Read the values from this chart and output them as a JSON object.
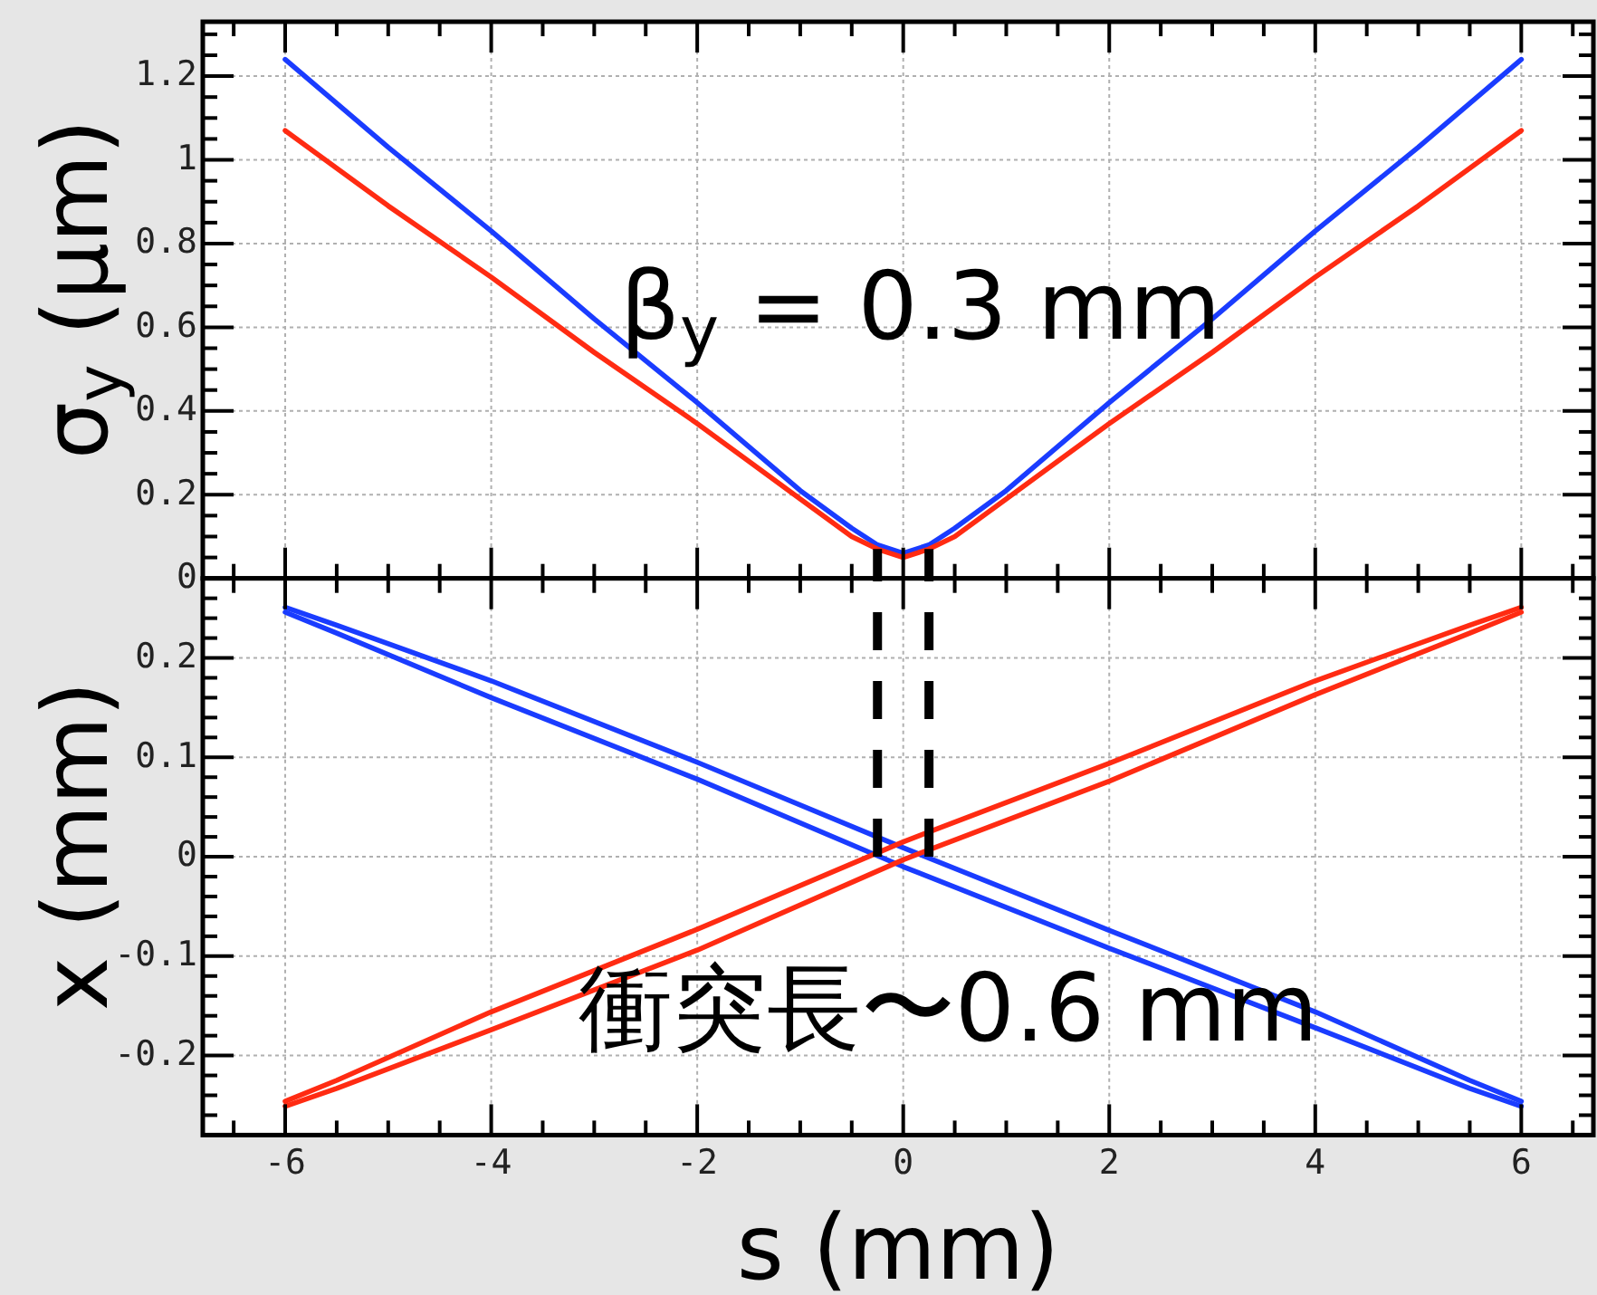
{
  "chart_data": [
    {
      "type": "line",
      "ylabel": "σ$_{y}$ (μm)",
      "annotations": [
        "β$_{y}$ = 0.3 mm"
      ],
      "x": [
        -6,
        -5,
        -4,
        -3,
        -2,
        -1,
        -0.5,
        -0.25,
        0,
        0.25,
        0.5,
        1,
        2,
        3,
        4,
        5,
        6
      ],
      "series": [
        {
          "color": "#1a3cff",
          "values": [
            1.24,
            1.03,
            0.83,
            0.62,
            0.42,
            0.21,
            0.12,
            0.08,
            0.06,
            0.08,
            0.12,
            0.21,
            0.42,
            0.62,
            0.83,
            1.03,
            1.24
          ]
        },
        {
          "color": "#ff2b12",
          "values": [
            1.07,
            0.89,
            0.72,
            0.54,
            0.37,
            0.19,
            0.1,
            0.07,
            0.05,
            0.07,
            0.1,
            0.19,
            0.37,
            0.54,
            0.72,
            0.89,
            1.07
          ]
        }
      ],
      "xlim": [
        -6.8,
        6.7
      ],
      "ylim": [
        0,
        1.33
      ],
      "xticks": [
        {
          "value": -6.5,
          "label": null
        },
        -6,
        {
          "value": -5.5,
          "label": null
        },
        {
          "value": -5,
          "label": null
        },
        {
          "value": -4.5,
          "label": null
        },
        -4,
        {
          "value": -3.5,
          "label": null
        },
        {
          "value": -3,
          "label": null
        },
        {
          "value": -2.5,
          "label": null
        },
        -2,
        {
          "value": -1.5,
          "label": null
        },
        {
          "value": -1,
          "label": null
        },
        {
          "value": -0.5,
          "label": null
        },
        0,
        {
          "value": 0.5,
          "label": null
        },
        {
          "value": 1,
          "label": null
        },
        {
          "value": 1.5,
          "label": null
        },
        2,
        {
          "value": 2.5,
          "label": null
        },
        {
          "value": 3,
          "label": null
        },
        {
          "value": 3.5,
          "label": null
        },
        4,
        {
          "value": 4.5,
          "label": null
        },
        {
          "value": 5,
          "label": null
        },
        {
          "value": 5.5,
          "label": null
        },
        6,
        {
          "value": 6.5,
          "label": null
        }
      ],
      "yticks": [
        0,
        {
          "value": 0.05,
          "label": null
        },
        {
          "value": 0.1,
          "label": null
        },
        {
          "value": 0.15,
          "label": null
        },
        0.2,
        {
          "value": 0.25,
          "label": null
        },
        {
          "value": 0.3,
          "label": null
        },
        {
          "value": 0.35,
          "label": null
        },
        0.4,
        {
          "value": 0.45,
          "label": null
        },
        {
          "value": 0.5,
          "label": null
        },
        {
          "value": 0.55,
          "label": null
        },
        0.6,
        {
          "value": 0.65,
          "label": null
        },
        {
          "value": 0.7,
          "label": null
        },
        {
          "value": 0.75,
          "label": null
        },
        0.8,
        {
          "value": 0.85,
          "label": null
        },
        {
          "value": 0.9,
          "label": null
        },
        {
          "value": 0.95,
          "label": null
        },
        1,
        {
          "value": 1.05,
          "label": null
        },
        {
          "value": 1.1,
          "label": null
        },
        {
          "value": 1.15,
          "label": null
        },
        1.2,
        {
          "value": 1.25,
          "label": null
        },
        {
          "value": 1.3,
          "label": null
        }
      ],
      "grid": true,
      "tick_labels": "y"
    },
    {
      "type": "line",
      "xlabel": "s (mm)",
      "ylabel": "x (mm)",
      "annotations": [
        "衝突長〜0.6 mm"
      ],
      "x": [
        -6,
        -5.5,
        -4,
        -2,
        0,
        2,
        4,
        5.5,
        6
      ],
      "series": [
        {
          "color": "#1a3cff",
          "values": [
            0.251,
            0.233,
            0.177,
            0.095,
            0.009,
            -0.074,
            -0.156,
            -0.225,
            -0.246
          ]
        },
        {
          "color": "#1a3cff",
          "values": [
            0.246,
            0.225,
            0.16,
            0.078,
            -0.01,
            -0.092,
            -0.172,
            -0.233,
            -0.251
          ]
        },
        {
          "color": "#ff2b12",
          "values": [
            -0.246,
            -0.225,
            -0.156,
            -0.073,
            0.015,
            0.094,
            0.177,
            0.233,
            0.251
          ]
        },
        {
          "color": "#ff2b12",
          "values": [
            -0.251,
            -0.233,
            -0.174,
            -0.094,
            -0.003,
            0.076,
            0.163,
            0.225,
            0.246
          ]
        }
      ],
      "xlim": [
        -6.8,
        6.7
      ],
      "ylim": [
        -0.28,
        0.28
      ],
      "xticks": [
        {
          "value": -6.5,
          "label": null
        },
        -6,
        {
          "value": -5.5,
          "label": null
        },
        {
          "value": -5,
          "label": null
        },
        {
          "value": -4.5,
          "label": null
        },
        -4,
        {
          "value": -3.5,
          "label": null
        },
        {
          "value": -3,
          "label": null
        },
        {
          "value": -2.5,
          "label": null
        },
        -2,
        {
          "value": -1.5,
          "label": null
        },
        {
          "value": -1,
          "label": null
        },
        {
          "value": -0.5,
          "label": null
        },
        0,
        {
          "value": 0.5,
          "label": null
        },
        {
          "value": 1,
          "label": null
        },
        {
          "value": 1.5,
          "label": null
        },
        2,
        {
          "value": 2.5,
          "label": null
        },
        {
          "value": 3,
          "label": null
        },
        {
          "value": 3.5,
          "label": null
        },
        4,
        {
          "value": 4.5,
          "label": null
        },
        {
          "value": 5,
          "label": null
        },
        {
          "value": 5.5,
          "label": null
        },
        6,
        {
          "value": 6.5,
          "label": null
        }
      ],
      "yticks": [
        {
          "value": -0.26,
          "label": null
        },
        {
          "value": -0.24,
          "label": null
        },
        {
          "value": -0.22,
          "label": null
        },
        -0.2,
        {
          "value": -0.18,
          "label": null
        },
        {
          "value": -0.16,
          "label": null
        },
        {
          "value": -0.14,
          "label": null
        },
        {
          "value": -0.12,
          "label": null
        },
        -0.1,
        {
          "value": -0.08,
          "label": null
        },
        {
          "value": -0.06,
          "label": null
        },
        {
          "value": -0.04,
          "label": null
        },
        {
          "value": -0.02,
          "label": null
        },
        0,
        {
          "value": 0.02,
          "label": null
        },
        {
          "value": 0.04,
          "label": null
        },
        {
          "value": 0.06,
          "label": null
        },
        {
          "value": 0.08,
          "label": null
        },
        0.1,
        {
          "value": 0.12,
          "label": null
        },
        {
          "value": 0.14,
          "label": null
        },
        {
          "value": 0.16,
          "label": null
        },
        {
          "value": 0.18,
          "label": null
        },
        0.2,
        {
          "value": 0.22,
          "label": null
        },
        {
          "value": 0.24,
          "label": null
        },
        {
          "value": 0.26,
          "label": null
        }
      ],
      "grid": true,
      "ref_lines": [
        {
          "axis": "x",
          "value": -0.25,
          "color": "#000000",
          "line_style": "dashed"
        },
        {
          "axis": "x",
          "value": 0.25,
          "color": "#000000",
          "line_style": "dashed"
        }
      ]
    }
  ]
}
